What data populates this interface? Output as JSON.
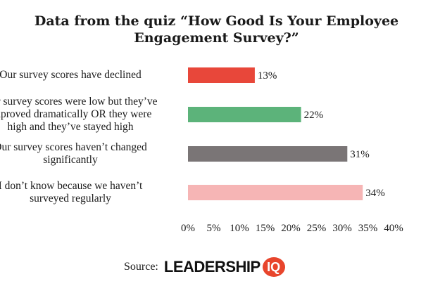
{
  "chart_data": {
    "type": "bar",
    "orientation": "horizontal",
    "title": [
      "Data from the quiz “How Good Is Your Employee",
      "Engagement Survey?”"
    ],
    "categories": [
      [
        "Our survey scores have declined"
      ],
      [
        "Our survey scores were low but they’ve",
        "improved dramatically OR they were",
        "high and they’ve stayed high"
      ],
      [
        "Our survey scores haven’t changed",
        "significantly"
      ],
      [
        "I don’t know because we haven’t",
        "surveyed regularly"
      ]
    ],
    "values": [
      13,
      22,
      31,
      34
    ],
    "data_labels": [
      "13%",
      "22%",
      "31%",
      "34%"
    ],
    "colors": [
      "#e8473a",
      "#5cb37a",
      "#7a7576",
      "#f6b5b5"
    ],
    "xlim": [
      0,
      40
    ],
    "xticks": [
      0,
      5,
      10,
      15,
      20,
      25,
      30,
      35,
      40
    ],
    "xtick_labels": [
      "0%",
      "5%",
      "10%",
      "15%",
      "20%",
      "25%",
      "30%",
      "35%",
      "40%"
    ],
    "grid": false
  },
  "source": {
    "label": "Source:",
    "brand": "LEADERSHIP",
    "brand_badge": "IQ",
    "badge_color": "#e8452c"
  }
}
